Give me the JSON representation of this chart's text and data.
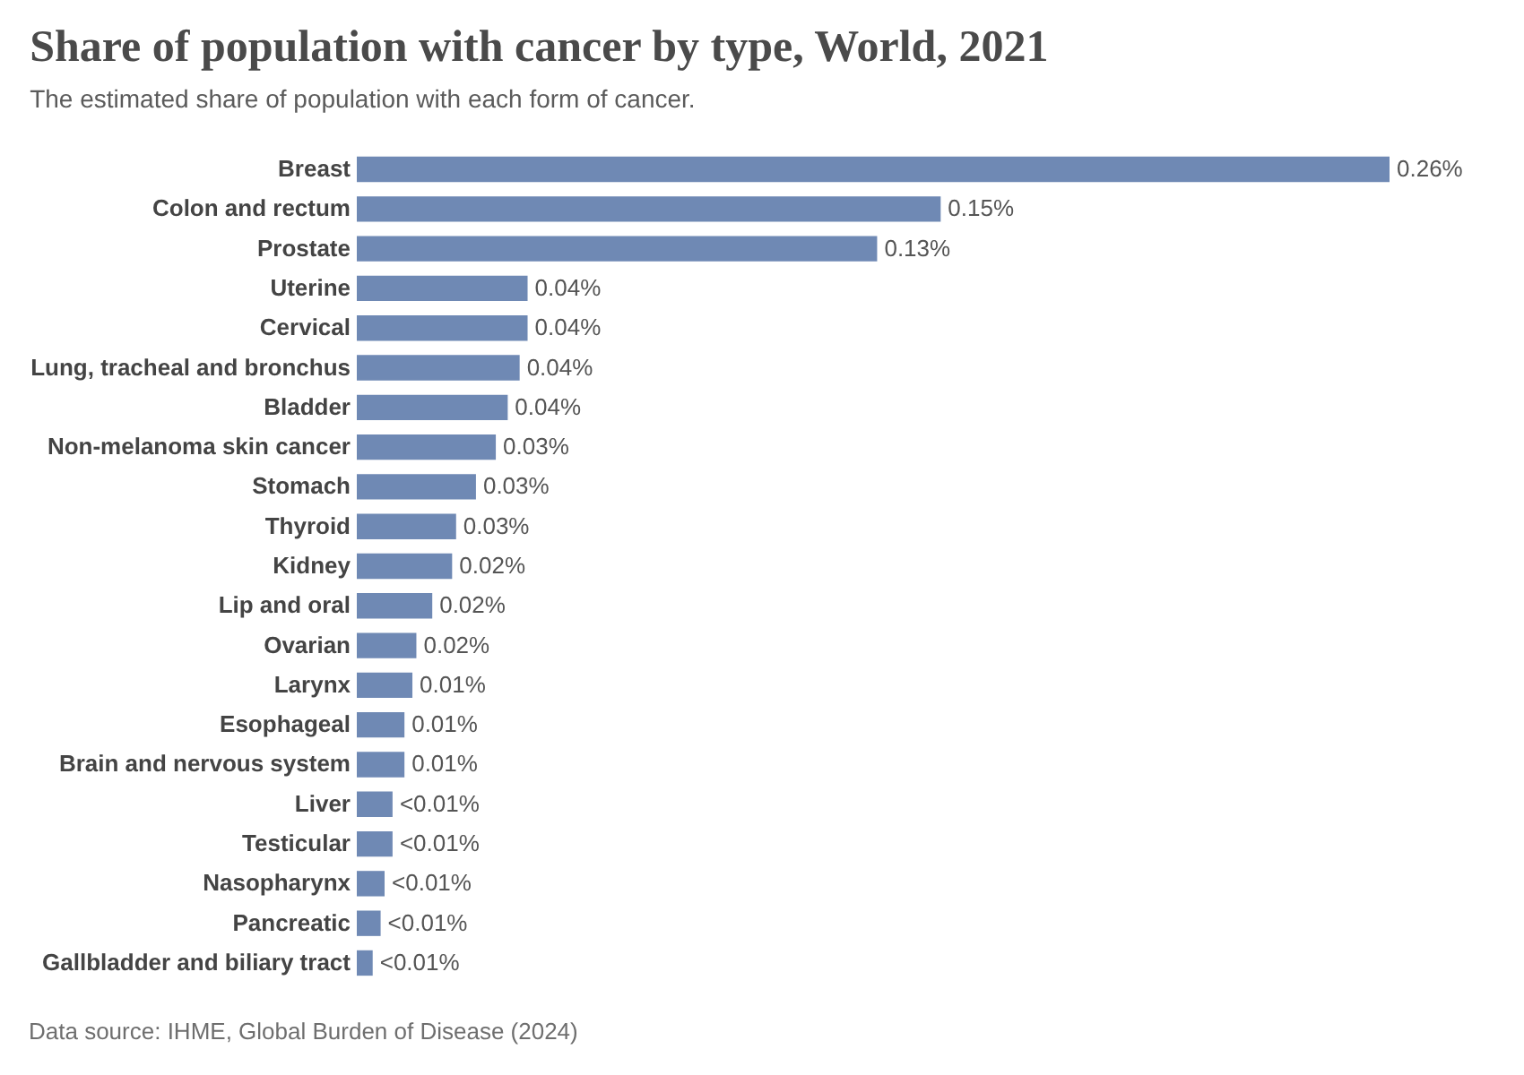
{
  "chart_data": {
    "type": "bar",
    "orientation": "horizontal",
    "title": "Share of population with cancer by type, World, 2021",
    "subtitle": "The estimated share of population with each form of cancer.",
    "categories": [
      "Breast",
      "Colon and rectum",
      "Prostate",
      "Uterine",
      "Cervical",
      "Lung, tracheal and bronchus",
      "Bladder",
      "Non-melanoma skin cancer",
      "Stomach",
      "Thyroid",
      "Kidney",
      "Lip and oral",
      "Ovarian",
      "Larynx",
      "Esophageal",
      "Brain and nervous system",
      "Liver",
      "Testicular",
      "Nasopharynx",
      "Pancreatic",
      "Gallbladder and biliary tract"
    ],
    "values": [
      0.26,
      0.147,
      0.131,
      0.043,
      0.043,
      0.041,
      0.038,
      0.035,
      0.03,
      0.025,
      0.024,
      0.019,
      0.015,
      0.014,
      0.012,
      0.012,
      0.009,
      0.009,
      0.007,
      0.006,
      0.004
    ],
    "value_labels": [
      "0.26%",
      "0.15%",
      "0.13%",
      "0.04%",
      "0.04%",
      "0.04%",
      "0.04%",
      "0.03%",
      "0.03%",
      "0.03%",
      "0.02%",
      "0.02%",
      "0.02%",
      "0.01%",
      "0.01%",
      "0.01%",
      "<0.01%",
      "<0.01%",
      "<0.01%",
      "<0.01%",
      "<0.01%"
    ],
    "color": "#6f89b4",
    "annotations": [
      "Data source: IHME, Global Burden of Disease (2024)"
    ]
  }
}
